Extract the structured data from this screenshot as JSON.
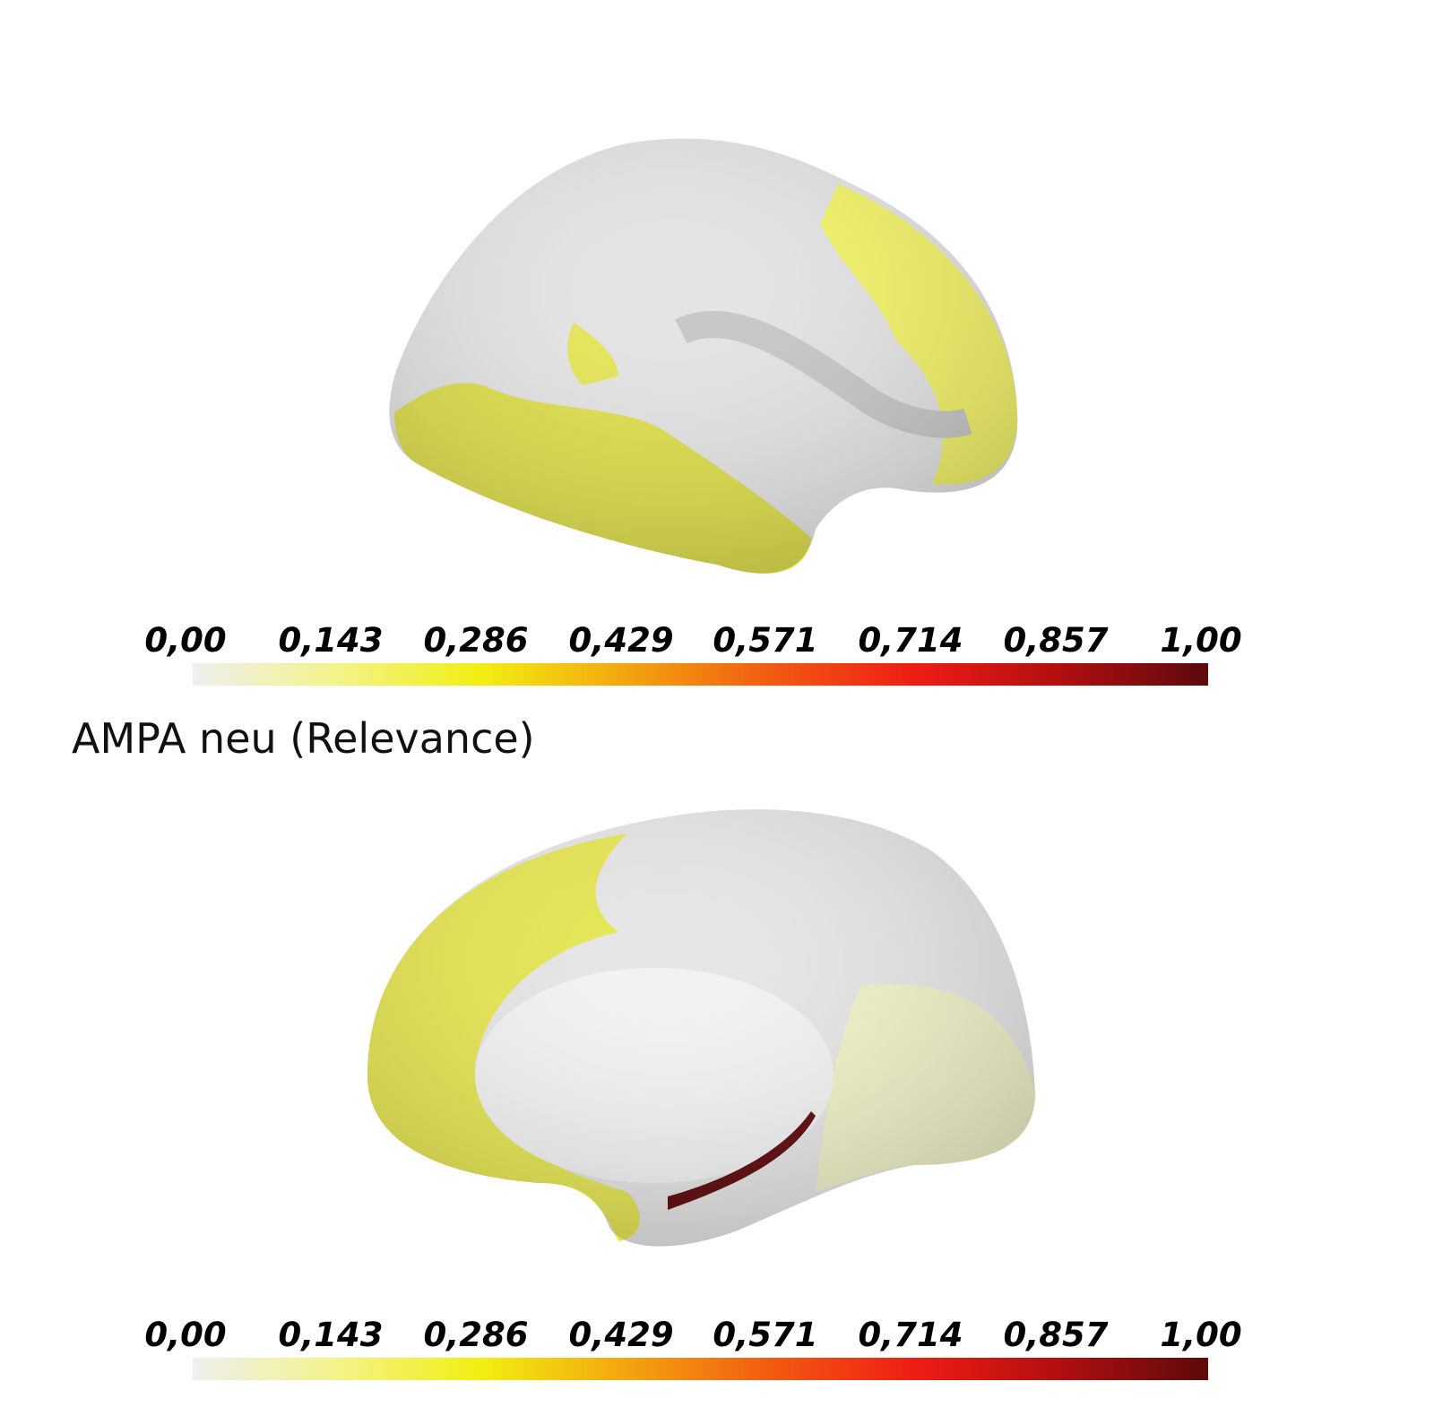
{
  "title": "AMPA neu (Relevance)",
  "colormap": [
    "#efefef",
    "#f3f38a",
    "#f2ee10",
    "#f3a410",
    "#f25a12",
    "#ee1c14",
    "#b00e10",
    "#5c0a0c"
  ],
  "colorbars": [
    {
      "range": [
        0,
        1
      ],
      "ticks": [
        {
          "value": 0,
          "label": "0,00"
        },
        {
          "value": 0.143,
          "label": "0,143"
        },
        {
          "value": 0.286,
          "label": "0,286"
        },
        {
          "value": 0.429,
          "label": "0,429"
        },
        {
          "value": 0.571,
          "label": "0,571"
        },
        {
          "value": 0.714,
          "label": "0,714"
        },
        {
          "value": 0.857,
          "label": "0,857"
        },
        {
          "value": 1,
          "label": "1,00"
        }
      ]
    },
    {
      "range": [
        0,
        1
      ],
      "ticks": [
        {
          "value": 0,
          "label": "0,00"
        },
        {
          "value": 0.143,
          "label": "0,143"
        },
        {
          "value": 0.286,
          "label": "0,286"
        },
        {
          "value": 0.429,
          "label": "0,429"
        },
        {
          "value": 0.571,
          "label": "0,571"
        },
        {
          "value": 0.714,
          "label": "0,714"
        },
        {
          "value": 0.857,
          "label": "0,857"
        },
        {
          "value": 1,
          "label": "1,00"
        }
      ]
    }
  ]
}
